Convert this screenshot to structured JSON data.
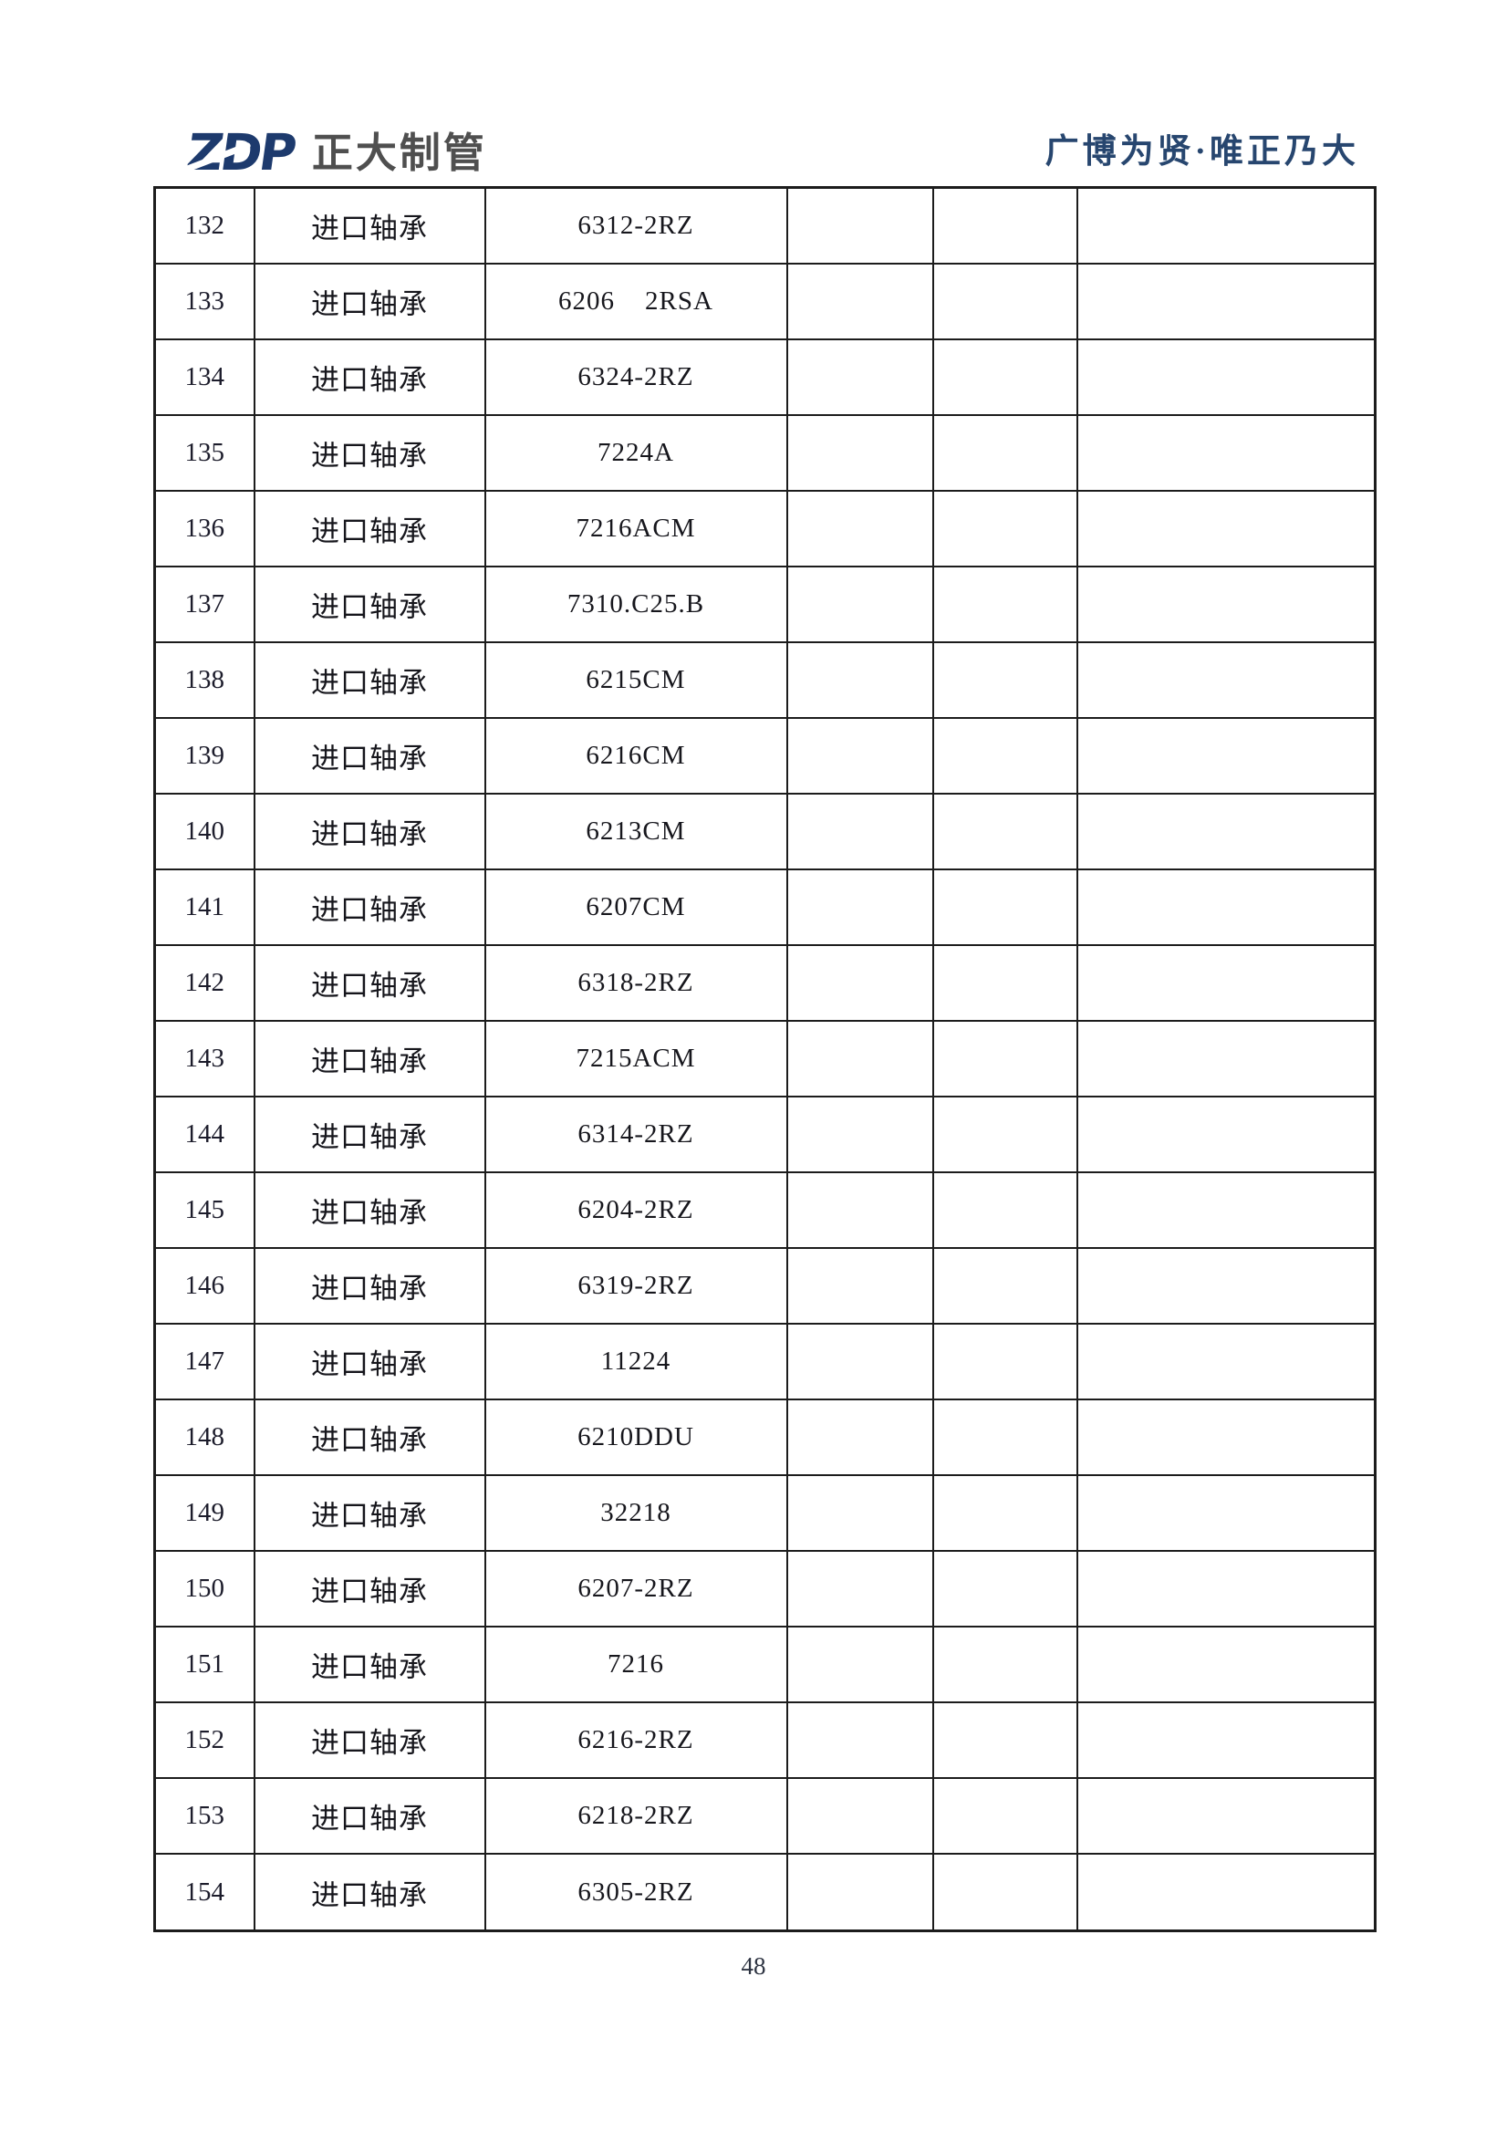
{
  "header": {
    "logo_zdp": "ZDP",
    "logo_company_name": "正大制管",
    "slogan": "广博为贤·唯正乃大"
  },
  "colors": {
    "logo_blue": "#1d3a6d",
    "logo_gray": "#4f4f4f",
    "slogan_blue": "#27466f",
    "table_border": "#1c1c1c"
  },
  "table": {
    "rows": [
      [
        "132",
        "进口轴承",
        "6312-2RZ",
        "",
        "",
        ""
      ],
      [
        "133",
        "进口轴承",
        "6206    2RSA",
        "",
        "",
        ""
      ],
      [
        "134",
        "进口轴承",
        "6324-2RZ",
        "",
        "",
        ""
      ],
      [
        "135",
        "进口轴承",
        "7224A",
        "",
        "",
        ""
      ],
      [
        "136",
        "进口轴承",
        "7216ACM",
        "",
        "",
        ""
      ],
      [
        "137",
        "进口轴承",
        "7310.C25.B",
        "",
        "",
        ""
      ],
      [
        "138",
        "进口轴承",
        "6215CM",
        "",
        "",
        ""
      ],
      [
        "139",
        "进口轴承",
        "6216CM",
        "",
        "",
        ""
      ],
      [
        "140",
        "进口轴承",
        "6213CM",
        "",
        "",
        ""
      ],
      [
        "141",
        "进口轴承",
        "6207CM",
        "",
        "",
        ""
      ],
      [
        "142",
        "进口轴承",
        "6318-2RZ",
        "",
        "",
        ""
      ],
      [
        "143",
        "进口轴承",
        "7215ACM",
        "",
        "",
        ""
      ],
      [
        "144",
        "进口轴承",
        "6314-2RZ",
        "",
        "",
        ""
      ],
      [
        "145",
        "进口轴承",
        "6204-2RZ",
        "",
        "",
        ""
      ],
      [
        "146",
        "进口轴承",
        "6319-2RZ",
        "",
        "",
        ""
      ],
      [
        "147",
        "进口轴承",
        "11224",
        "",
        "",
        ""
      ],
      [
        "148",
        "进口轴承",
        "6210DDU",
        "",
        "",
        ""
      ],
      [
        "149",
        "进口轴承",
        "32218",
        "",
        "",
        ""
      ],
      [
        "150",
        "进口轴承",
        "6207-2RZ",
        "",
        "",
        ""
      ],
      [
        "151",
        "进口轴承",
        "7216",
        "",
        "",
        ""
      ],
      [
        "152",
        "进口轴承",
        "6216-2RZ",
        "",
        "",
        ""
      ],
      [
        "153",
        "进口轴承",
        "6218-2RZ",
        "",
        "",
        ""
      ],
      [
        "154",
        "进口轴承",
        "6305-2RZ",
        "",
        "",
        ""
      ]
    ]
  },
  "footer": {
    "page_number": "48"
  }
}
